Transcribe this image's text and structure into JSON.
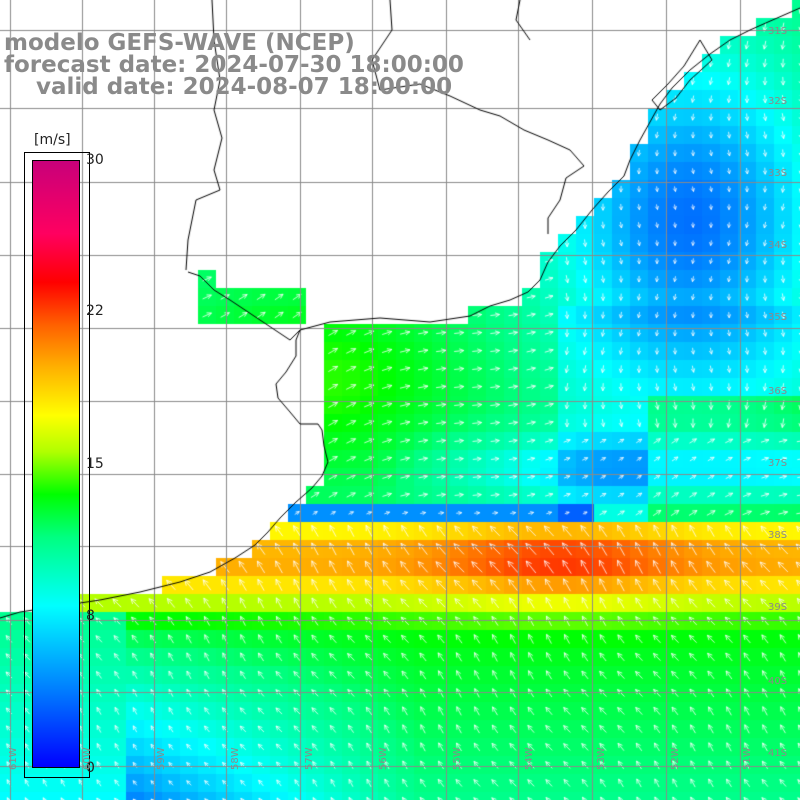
{
  "title": {
    "line1": "modelo GEFS-WAVE (NCEP)",
    "line2": "forecast date: 2024-07-30 18:00:00",
    "line3": "    valid date: 2024-08-07 18:00:00"
  },
  "colorbar": {
    "unit": "[m/s]",
    "ticks": [
      "30",
      "22",
      "15",
      "8",
      "0"
    ],
    "colors": [
      "#0000ff",
      "#00ffff",
      "#00ff00",
      "#ffff00",
      "#ff0000",
      "#c8007a"
    ]
  },
  "lat_labels": [
    "31S",
    "32S",
    "33S",
    "34S",
    "35S",
    "36S",
    "37S",
    "38S",
    "39S",
    "40S",
    "41S"
  ],
  "lon_labels": [
    "61W",
    "60W",
    "59W",
    "58W",
    "57W",
    "56W",
    "55W",
    "54W",
    "53W",
    "52W",
    "51W"
  ],
  "map": {
    "variable": "wind speed",
    "units": "m/s",
    "arrow_color": "#ffffff",
    "coastline_color": "#000000",
    "grid_color": "#8a8a8a"
  }
}
